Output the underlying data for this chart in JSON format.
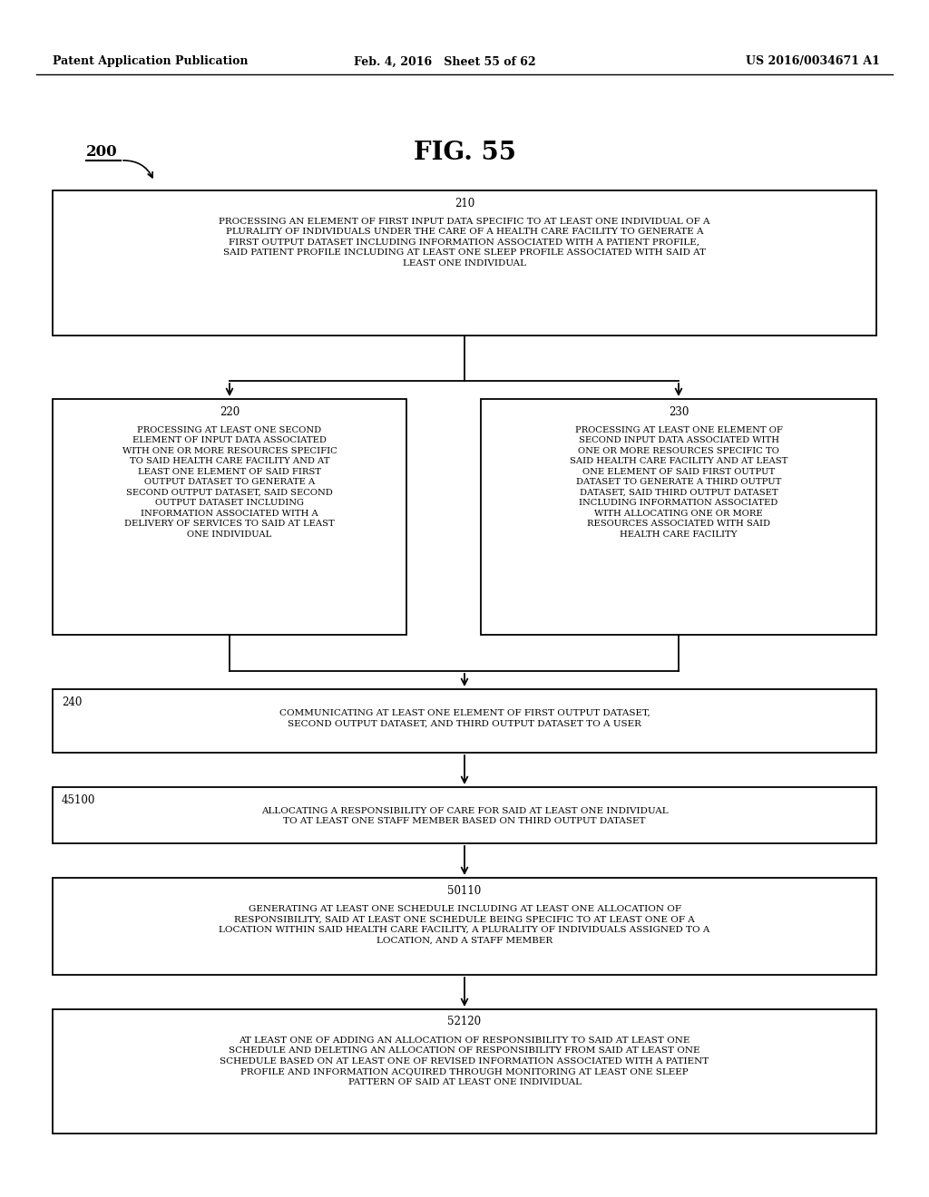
{
  "bg_color": "#ffffff",
  "header_left": "Patent Application Publication",
  "header_mid": "Feb. 4, 2016   Sheet 55 of 62",
  "header_right": "US 2016/0034671 A1",
  "fig_label": "200",
  "fig_title": "FIG. 55",
  "box210_label": "210",
  "box210_text": "PROCESSING AN ELEMENT OF FIRST INPUT DATA SPECIFIC TO AT LEAST ONE INDIVIDUAL OF A\nPLURALITY OF INDIVIDUALS UNDER THE CARE OF A HEALTH CARE FACILITY TO GENERATE A\nFIRST OUTPUT DATASET INCLUDING INFORMATION ASSOCIATED WITH A PATIENT PROFILE,\nSAID PATIENT PROFILE INCLUDING AT LEAST ONE SLEEP PROFILE ASSOCIATED WITH SAID AT\nLEAST ONE INDIVIDUAL",
  "box220_label": "220",
  "box220_text": "PROCESSING AT LEAST ONE SECOND\nELEMENT OF INPUT DATA ASSOCIATED\nWITH ONE OR MORE RESOURCES SPECIFIC\nTO SAID HEALTH CARE FACILITY AND AT\nLEAST ONE ELEMENT OF SAID FIRST\nOUTPUT DATASET TO GENERATE A\nSECOND OUTPUT DATASET, SAID SECOND\nOUTPUT DATASET INCLUDING\nINFORMATION ASSOCIATED WITH A\nDELIVERY OF SERVICES TO SAID AT LEAST\nONE INDIVIDUAL",
  "box230_label": "230",
  "box230_text": "PROCESSING AT LEAST ONE ELEMENT OF\nSECOND INPUT DATA ASSOCIATED WITH\nONE OR MORE RESOURCES SPECIFIC TO\nSAID HEALTH CARE FACILITY AND AT LEAST\nONE ELEMENT OF SAID FIRST OUTPUT\nDATASET TO GENERATE A THIRD OUTPUT\nDATASET, SAID THIRD OUTPUT DATASET\nINCLUDING INFORMATION ASSOCIATED\nWITH ALLOCATING ONE OR MORE\nRESOURCES ASSOCIATED WITH SAID\nHEALTH CARE FACILITY",
  "box240_label": "240",
  "box240_text": "COMMUNICATING AT LEAST ONE ELEMENT OF FIRST OUTPUT DATASET,\nSECOND OUTPUT DATASET, AND THIRD OUTPUT DATASET TO A USER",
  "box45100_label": "45100",
  "box45100_text": "ALLOCATING A RESPONSIBILITY OF CARE FOR SAID AT LEAST ONE INDIVIDUAL\nTO AT LEAST ONE STAFF MEMBER BASED ON THIRD OUTPUT DATASET",
  "box50110_label": "50110",
  "box50110_text": "GENERATING AT LEAST ONE SCHEDULE INCLUDING AT LEAST ONE ALLOCATION OF\nRESPONSIBILITY, SAID AT LEAST ONE SCHEDULE BEING SPECIFIC TO AT LEAST ONE OF A\nLOCATION WITHIN SAID HEALTH CARE FACILITY, A PLURALITY OF INDIVIDUALS ASSIGNED TO A\nLOCATION, AND A STAFF MEMBER",
  "box52120_label": "52120",
  "box52120_text": "AT LEAST ONE OF ADDING AN ALLOCATION OF RESPONSIBILITY TO SAID AT LEAST ONE\nSCHEDULE AND DELETING AN ALLOCATION OF RESPONSIBILITY FROM SAID AT LEAST ONE\nSCHEDULE BASED ON AT LEAST ONE OF REVISED INFORMATION ASSOCIATED WITH A PATIENT\nPROFILE AND INFORMATION ACQUIRED THROUGH MONITORING AT LEAST ONE SLEEP\nPATTERN OF SAID AT LEAST ONE INDIVIDUAL"
}
